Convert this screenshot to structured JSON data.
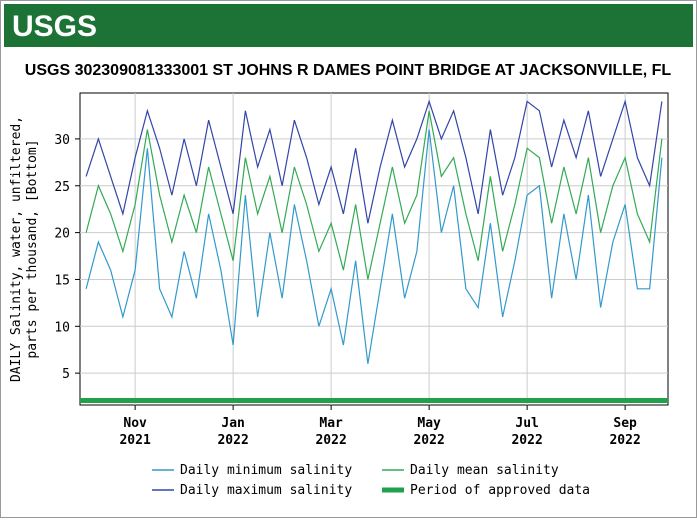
{
  "header": {
    "logo": "USGS"
  },
  "chart_data": {
    "type": "line",
    "title": "USGS 302309081333001 ST JOHNS R DAMES POINT BRIDGE AT JACKSONVILLE, FL",
    "y_label": "DAILY Salinity, water, unfiltered, parts per thousand, [Bottom]",
    "categories": [
      null,
      null,
      null,
      null,
      "Nov 2021",
      null,
      null,
      null,
      null,
      null,
      null,
      null,
      "Jan 2022",
      null,
      null,
      null,
      null,
      null,
      null,
      null,
      "Mar 2022",
      null,
      null,
      null,
      null,
      null,
      null,
      null,
      "May 2022",
      null,
      null,
      null,
      null,
      null,
      null,
      null,
      "Jul 2022",
      null,
      null,
      null,
      null,
      null,
      null,
      null,
      "Sep 2022",
      null,
      null,
      null
    ],
    "series": [
      {
        "name": "Daily minimum salinity",
        "color": "#3399cc",
        "values": [
          14,
          19,
          16,
          11,
          16,
          29,
          14,
          11,
          18,
          13,
          22,
          16,
          8,
          24,
          11,
          20,
          13,
          23,
          17,
          10,
          14,
          8,
          17,
          6,
          14,
          22,
          13,
          18,
          31,
          20,
          25,
          14,
          12,
          21,
          11,
          17,
          24,
          25,
          13,
          22,
          15,
          24,
          12,
          19,
          23,
          14,
          14,
          28
        ]
      },
      {
        "name": "Daily mean salinity",
        "color": "#33aa55",
        "values": [
          20,
          25,
          22,
          18,
          23,
          31,
          24,
          19,
          24,
          20,
          27,
          22,
          17,
          28,
          22,
          26,
          20,
          27,
          23,
          18,
          21,
          16,
          23,
          15,
          21,
          27,
          21,
          24,
          33,
          26,
          28,
          22,
          17,
          26,
          18,
          23,
          29,
          28,
          21,
          27,
          22,
          28,
          20,
          25,
          28,
          22,
          19,
          30
        ]
      },
      {
        "name": "Daily maximum salinity",
        "color": "#3345a8",
        "values": [
          26,
          30,
          26,
          22,
          28,
          33,
          29,
          24,
          30,
          25,
          32,
          27,
          22,
          33,
          27,
          31,
          25,
          32,
          28,
          23,
          27,
          22,
          29,
          21,
          27,
          32,
          27,
          30,
          34,
          30,
          33,
          28,
          22,
          31,
          24,
          28,
          34,
          33,
          27,
          32,
          28,
          33,
          26,
          30,
          34,
          28,
          25,
          34
        ]
      }
    ],
    "band": {
      "name": "Period of approved data",
      "color": "#22a14d"
    },
    "ylim": [
      1.6,
      34.9
    ],
    "yticks": [
      5,
      10,
      15,
      20,
      25,
      30
    ],
    "grid": true
  }
}
